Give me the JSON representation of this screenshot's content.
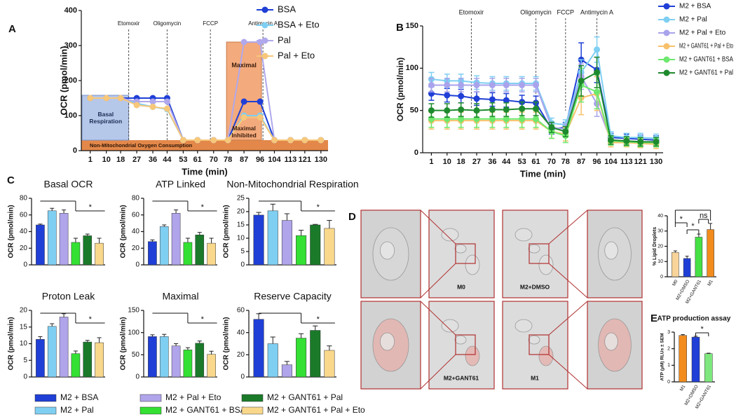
{
  "panels": [
    "A",
    "B",
    "C",
    "D",
    "E"
  ],
  "chart_data": [
    {
      "type": "line",
      "xlabel": "Time (min)",
      "ylabel": "OCR (pmol/min)",
      "x": [
        1,
        10,
        18,
        27,
        36,
        44,
        53,
        61,
        70,
        78,
        87,
        96,
        104,
        113,
        121,
        130
      ],
      "xlim": [
        -4,
        134
      ],
      "xticks": [
        1,
        10,
        18,
        27,
        36,
        44,
        53,
        61,
        70,
        78,
        87,
        96,
        104,
        113,
        121,
        130
      ],
      "ylim": [
        0,
        400
      ],
      "yticks": [
        0,
        100,
        200,
        300,
        400
      ],
      "annotations": [
        "Etomoxir",
        "Oligomycin",
        "FCCP",
        "Antimycin A"
      ],
      "regions": [
        "Basal Respiration",
        "Maximal",
        "Maximal Inhibited",
        "Non-Mitochondrial Oxygen Consumption"
      ],
      "legend": "upper right",
      "series": [
        {
          "name": "BSA",
          "color": "#1f3fd6",
          "values": [
            150,
            150,
            150,
            150,
            150,
            150,
            30,
            30,
            30,
            30,
            140,
            140,
            30,
            30,
            30,
            30
          ]
        },
        {
          "name": "BSA + Eto",
          "color": "#7fcff2",
          "values": [
            150,
            150,
            150,
            135,
            125,
            118,
            30,
            30,
            30,
            30,
            100,
            100,
            30,
            30,
            30,
            30
          ]
        },
        {
          "name": "Pal",
          "color": "#b0a8ec",
          "values": [
            150,
            150,
            150,
            140,
            140,
            140,
            30,
            30,
            30,
            30,
            310,
            310,
            30,
            30,
            30,
            30
          ]
        },
        {
          "name": "Pal + Eto",
          "color": "#f7c77a",
          "values": [
            150,
            150,
            150,
            130,
            125,
            120,
            30,
            30,
            30,
            30,
            95,
            95,
            30,
            30,
            30,
            30
          ]
        }
      ]
    },
    {
      "type": "line",
      "xlabel": "Time (min)",
      "ylabel": "OCR (pmol/min)",
      "x": [
        1,
        10,
        18,
        27,
        36,
        44,
        53,
        61,
        70,
        78,
        87,
        96,
        104,
        113,
        121,
        130
      ],
      "xlim": [
        -4,
        134
      ],
      "xticks": [
        1,
        10,
        18,
        27,
        36,
        44,
        53,
        61,
        70,
        78,
        87,
        96,
        104,
        113,
        121,
        130
      ],
      "ylim": [
        0,
        150
      ],
      "yticks": [
        0,
        50,
        100,
        150
      ],
      "annotations": [
        "Etomoxir",
        "Oligomycin",
        "FCCP",
        "Antimycin A"
      ],
      "legend": "upper right",
      "series": [
        {
          "name": "M2 + BSA",
          "color": "#1f3fd6",
          "values": [
            70,
            68,
            67,
            64,
            63,
            62,
            60,
            59,
            28,
            30,
            110,
            98,
            18,
            17,
            16,
            15
          ],
          "errors": [
            8,
            8,
            8,
            8,
            8,
            8,
            8,
            8,
            6,
            6,
            20,
            15,
            5,
            5,
            5,
            5
          ]
        },
        {
          "name": "M2 + Pal",
          "color": "#7fcff2",
          "values": [
            87,
            85,
            85,
            83,
            82,
            82,
            82,
            82,
            35,
            33,
            95,
            122,
            20,
            18,
            18,
            17
          ],
          "errors": [
            8,
            8,
            8,
            8,
            8,
            8,
            8,
            8,
            6,
            6,
            15,
            15,
            5,
            5,
            5,
            5
          ]
        },
        {
          "name": "M2 + Pal + Eto",
          "color": "#a9a3ec",
          "values": [
            80,
            80,
            80,
            80,
            80,
            80,
            80,
            80,
            30,
            28,
            90,
            58,
            15,
            14,
            13,
            12
          ],
          "errors": [
            8,
            8,
            8,
            8,
            8,
            8,
            8,
            8,
            6,
            6,
            15,
            15,
            5,
            5,
            5,
            5
          ]
        },
        {
          "name": "M2 + GANT61 + Pal + Eto",
          "color": "#f7c16b",
          "values": [
            38,
            38,
            38,
            38,
            38,
            38,
            38,
            38,
            25,
            22,
            65,
            70,
            12,
            12,
            11,
            10
          ],
          "errors": [
            10,
            10,
            10,
            10,
            10,
            10,
            10,
            10,
            8,
            8,
            20,
            20,
            5,
            5,
            5,
            5
          ]
        },
        {
          "name": "M2 + GANT61 + BSA",
          "color": "#6ee86e",
          "values": [
            40,
            40,
            40,
            40,
            40,
            40,
            40,
            40,
            25,
            20,
            80,
            72,
            14,
            13,
            12,
            12
          ],
          "errors": [
            10,
            10,
            10,
            10,
            10,
            10,
            10,
            10,
            8,
            8,
            20,
            20,
            5,
            5,
            5,
            5
          ]
        },
        {
          "name": "M2 + GANT61 + Pal",
          "color": "#1e8a2e",
          "values": [
            50,
            50,
            51,
            50,
            51,
            51,
            52,
            52,
            30,
            25,
            85,
            95,
            15,
            14,
            13,
            13
          ],
          "errors": [
            8,
            8,
            8,
            8,
            8,
            8,
            8,
            8,
            6,
            6,
            18,
            18,
            5,
            5,
            5,
            5
          ]
        }
      ]
    },
    {
      "type": "bar",
      "title": "Basal OCR",
      "ylabel": "OCR (pmol/min)",
      "ylim": [
        0,
        80
      ],
      "yticks": [
        0,
        20,
        40,
        60,
        80
      ],
      "values": [
        48,
        65,
        62,
        27,
        35,
        26
      ],
      "errors": [
        1,
        3,
        4,
        5,
        2,
        6
      ],
      "annotations": [
        "*"
      ]
    },
    {
      "type": "bar",
      "title": "ATP Linked",
      "ylabel": "OCR (pmol/min)",
      "ylim": [
        0,
        80
      ],
      "yticks": [
        0,
        20,
        40,
        60,
        80
      ],
      "values": [
        28,
        46,
        62,
        27,
        36,
        26
      ],
      "errors": [
        2,
        2,
        4,
        5,
        3,
        6
      ],
      "annotations": [
        "*"
      ]
    },
    {
      "type": "bar",
      "title": "Non-Mitochondrial Respiration",
      "ylabel": "OCR (pmol/min)",
      "ylim": [
        0,
        25
      ],
      "yticks": [
        0,
        5,
        10,
        15,
        20,
        25
      ],
      "values": [
        18.7,
        20.3,
        16.7,
        11,
        15,
        13.7
      ],
      "errors": [
        1,
        2.5,
        2.5,
        2,
        0.2,
        3
      ],
      "annotations": [
        "*"
      ]
    },
    {
      "type": "bar",
      "title": "Proton Leak",
      "ylabel": "OCR (pmol/min)",
      "ylim": [
        0,
        20
      ],
      "yticks": [
        0,
        5,
        10,
        15,
        20
      ],
      "values": [
        11.3,
        15.2,
        18,
        7,
        10.5,
        10.3
      ],
      "errors": [
        0.8,
        0.8,
        1,
        0.8,
        0.5,
        1.5
      ],
      "annotations": [
        "*"
      ]
    },
    {
      "type": "bar",
      "title": "Maximal",
      "ylabel": "OCR (pmol/min)",
      "ylim": [
        0,
        150
      ],
      "yticks": [
        0,
        50,
        100,
        150
      ],
      "values": [
        91,
        91,
        70,
        61,
        76,
        51
      ],
      "errors": [
        4,
        5,
        5,
        5,
        5,
        7
      ],
      "annotations": [
        "*"
      ]
    },
    {
      "type": "bar",
      "title": "Reserve Capacity",
      "ylabel": "OCR (pmol/min)",
      "ylim": [
        0,
        60
      ],
      "yticks": [
        0,
        20,
        40,
        60
      ],
      "values": [
        52,
        30,
        11,
        35,
        42,
        24
      ],
      "errors": [
        5,
        6,
        3,
        4,
        4,
        4
      ],
      "annotations": [
        "*"
      ]
    },
    {
      "type": "bar",
      "ylabel": "% Lipid Droplets",
      "ylim": [
        0,
        40
      ],
      "yticks": [
        0,
        10,
        20,
        30,
        40
      ],
      "categories": [
        "M0",
        "M2+DMSO",
        "M2+GANT61",
        "M1"
      ],
      "colors": [
        "#f8d49a",
        "#1f3fd6",
        "#44e044",
        "#f28c1c"
      ],
      "values": [
        16,
        12,
        26,
        31
      ],
      "errors": [
        1,
        1.5,
        2,
        4
      ],
      "annotations": [
        "*",
        "*",
        "ns"
      ]
    },
    {
      "type": "bar",
      "title": "ATP production assay",
      "ylabel": "ATP (μM) RLUs ± SEM",
      "ylim": [
        0,
        3
      ],
      "yticks": [
        0,
        1,
        2,
        3
      ],
      "categories": [
        "M1",
        "M2+DMSO",
        "M2+GANT61"
      ],
      "colors": [
        "#f28c1c",
        "#1f3fd6",
        "#7ee87e"
      ],
      "values": [
        2.8,
        2.7,
        1.7
      ],
      "errors": [
        0.05,
        0.05,
        0.03
      ],
      "annotations": [
        "*"
      ]
    }
  ],
  "panel_c_legend": [
    {
      "name": "M2 + BSA",
      "color": "#1f3fd6"
    },
    {
      "name": "M2 + Pal",
      "color": "#7fcff2"
    },
    {
      "name": "M2 + Pal + Eto",
      "color": "#b0a4ea"
    },
    {
      "name": "M2 + GANT61 + BSA",
      "color": "#33e033"
    },
    {
      "name": "M2 + GANT61 + Pal",
      "color": "#1a7a2a"
    },
    {
      "name": "M2 + GANT61 + Pal + Eto",
      "color": "#f9d88c"
    }
  ],
  "micrographs": {
    "labels": [
      "M0",
      "M2+DMSO",
      "M2+GANT61",
      "M1"
    ]
  }
}
